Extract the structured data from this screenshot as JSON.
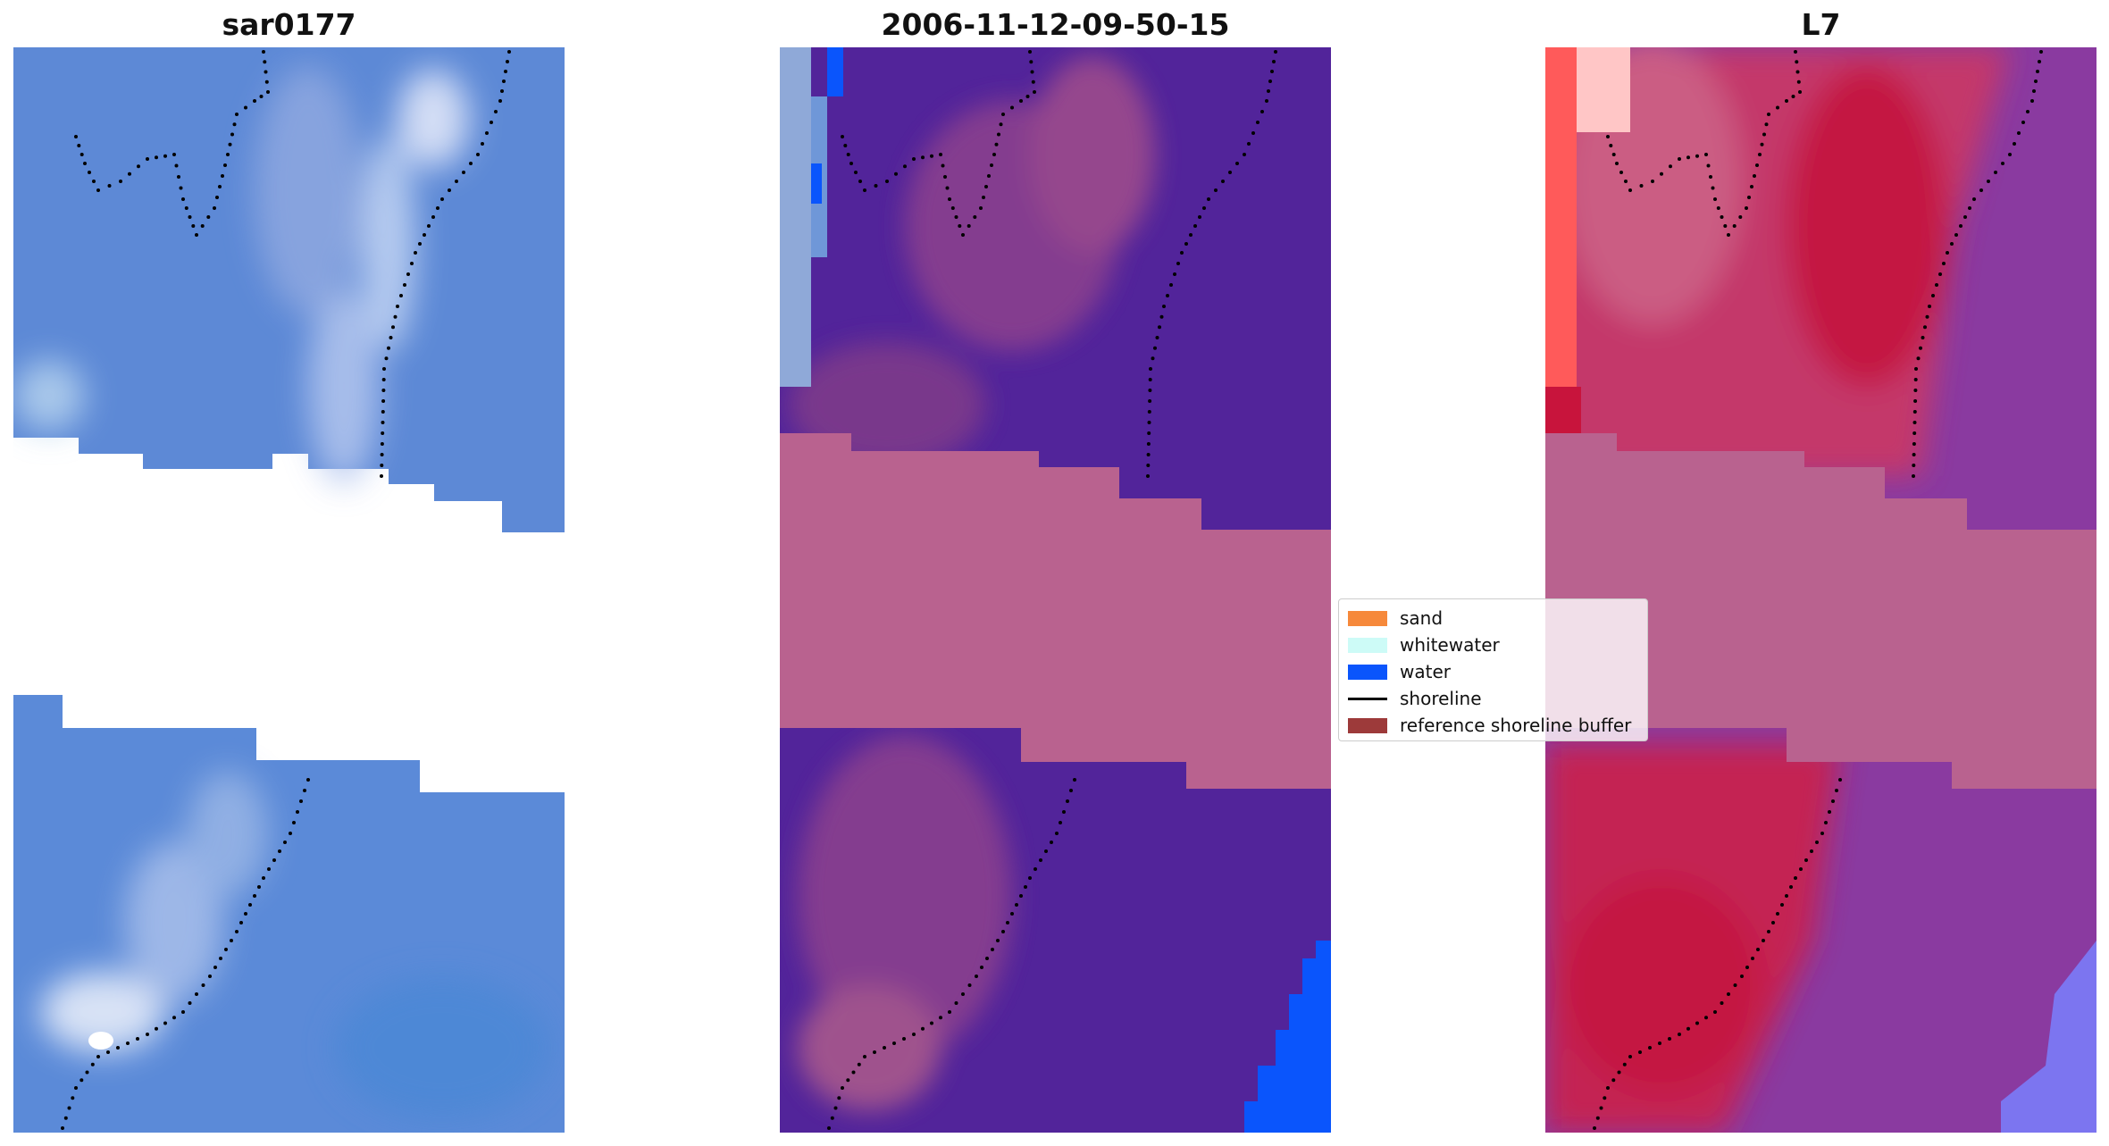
{
  "panels": [
    {
      "title": "sar0177"
    },
    {
      "title": "2006-11-12-09-50-15"
    },
    {
      "title": "L7"
    }
  ],
  "legend": {
    "items": [
      {
        "label": "sand",
        "color": "#f6893b",
        "kind": "patch"
      },
      {
        "label": "whitewater",
        "color": "#cdfbf7",
        "kind": "patch"
      },
      {
        "label": "water",
        "color": "#0a55fc",
        "kind": "patch"
      },
      {
        "label": "shoreline",
        "color": "#000000",
        "kind": "line"
      },
      {
        "label": "reference shoreline buffer",
        "color": "#9d3a3a",
        "kind": "patch"
      }
    ]
  },
  "colors": {
    "rgb_base": "#5a86d2",
    "classified_water_overlay": "#52249a",
    "classified_reference_band": "#b9628f",
    "mndwi_sand_red": "#c8143c",
    "mndwi_water_purple": "#8a3aa0",
    "shoreline_points": "#000000"
  }
}
